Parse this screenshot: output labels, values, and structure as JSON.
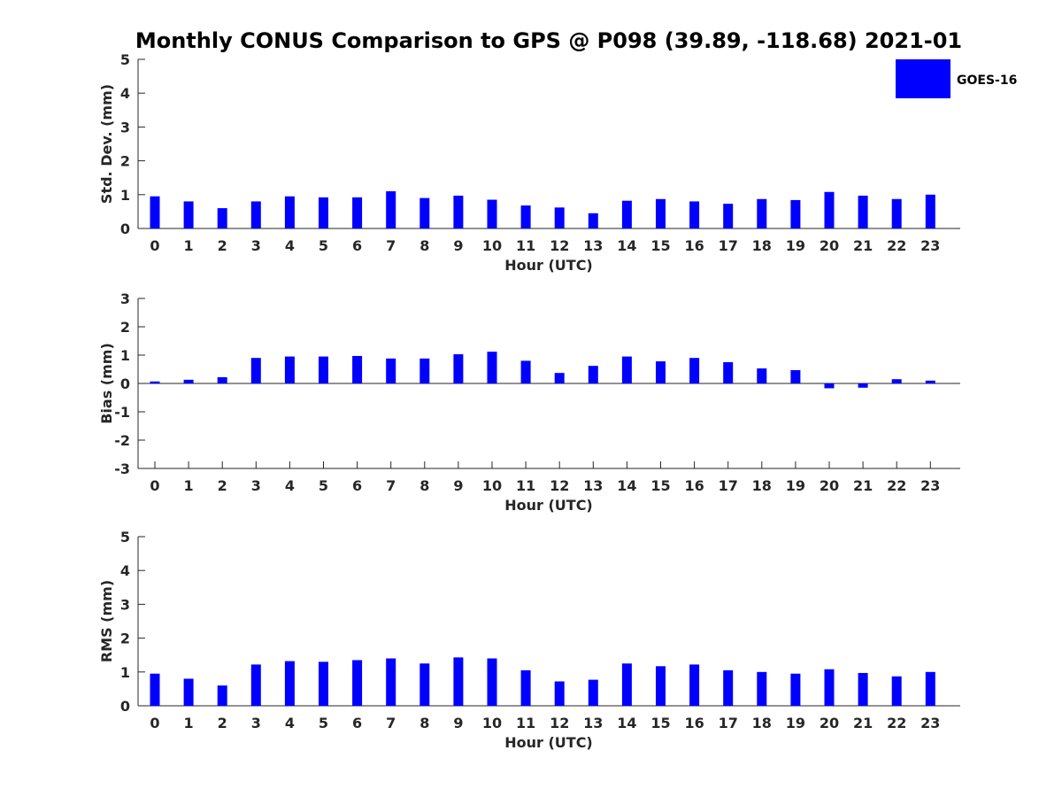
{
  "title": "Monthly CONUS Comparison to GPS @ P098 (39.89, -118.68) 2021-01",
  "legend": {
    "label": "GOES-16",
    "color": "#0000ff"
  },
  "chart_data": [
    {
      "type": "bar",
      "xlabel": "Hour (UTC)",
      "ylabel": "Std. Dev. (mm)",
      "ylim": [
        0,
        5
      ],
      "yticks": [
        0,
        1,
        2,
        3,
        4,
        5
      ],
      "categories": [
        0,
        1,
        2,
        3,
        4,
        5,
        6,
        7,
        8,
        9,
        10,
        11,
        12,
        13,
        14,
        15,
        16,
        17,
        18,
        19,
        20,
        21,
        22,
        23
      ],
      "series": [
        {
          "name": "GOES-16",
          "color": "#0000ff",
          "values": [
            0.95,
            0.8,
            0.6,
            0.8,
            0.95,
            0.92,
            0.92,
            1.1,
            0.9,
            0.97,
            0.85,
            0.68,
            0.62,
            0.45,
            0.82,
            0.87,
            0.8,
            0.73,
            0.87,
            0.84,
            1.08,
            0.97,
            0.87,
            1.0
          ]
        }
      ]
    },
    {
      "type": "bar",
      "xlabel": "Hour (UTC)",
      "ylabel": "Bias (mm)",
      "ylim": [
        -3,
        3
      ],
      "yticks": [
        -3,
        -2,
        -1,
        0,
        1,
        2,
        3
      ],
      "categories": [
        0,
        1,
        2,
        3,
        4,
        5,
        6,
        7,
        8,
        9,
        10,
        11,
        12,
        13,
        14,
        15,
        16,
        17,
        18,
        19,
        20,
        21,
        22,
        23
      ],
      "series": [
        {
          "name": "GOES-16",
          "color": "#0000ff",
          "values": [
            0.07,
            0.13,
            0.22,
            0.9,
            0.95,
            0.95,
            0.97,
            0.88,
            0.88,
            1.03,
            1.12,
            0.8,
            0.37,
            0.62,
            0.95,
            0.78,
            0.9,
            0.75,
            0.53,
            0.47,
            -0.17,
            -0.15,
            0.15,
            0.1
          ]
        }
      ]
    },
    {
      "type": "bar",
      "xlabel": "Hour (UTC)",
      "ylabel": "RMS (mm)",
      "ylim": [
        0,
        5
      ],
      "yticks": [
        0,
        1,
        2,
        3,
        4,
        5
      ],
      "categories": [
        0,
        1,
        2,
        3,
        4,
        5,
        6,
        7,
        8,
        9,
        10,
        11,
        12,
        13,
        14,
        15,
        16,
        17,
        18,
        19,
        20,
        21,
        22,
        23
      ],
      "series": [
        {
          "name": "GOES-16",
          "color": "#0000ff",
          "values": [
            0.95,
            0.8,
            0.6,
            1.22,
            1.32,
            1.3,
            1.35,
            1.4,
            1.25,
            1.43,
            1.4,
            1.05,
            0.72,
            0.77,
            1.25,
            1.17,
            1.22,
            1.05,
            1.0,
            0.95,
            1.08,
            0.97,
            0.87,
            1.0
          ]
        }
      ]
    }
  ]
}
